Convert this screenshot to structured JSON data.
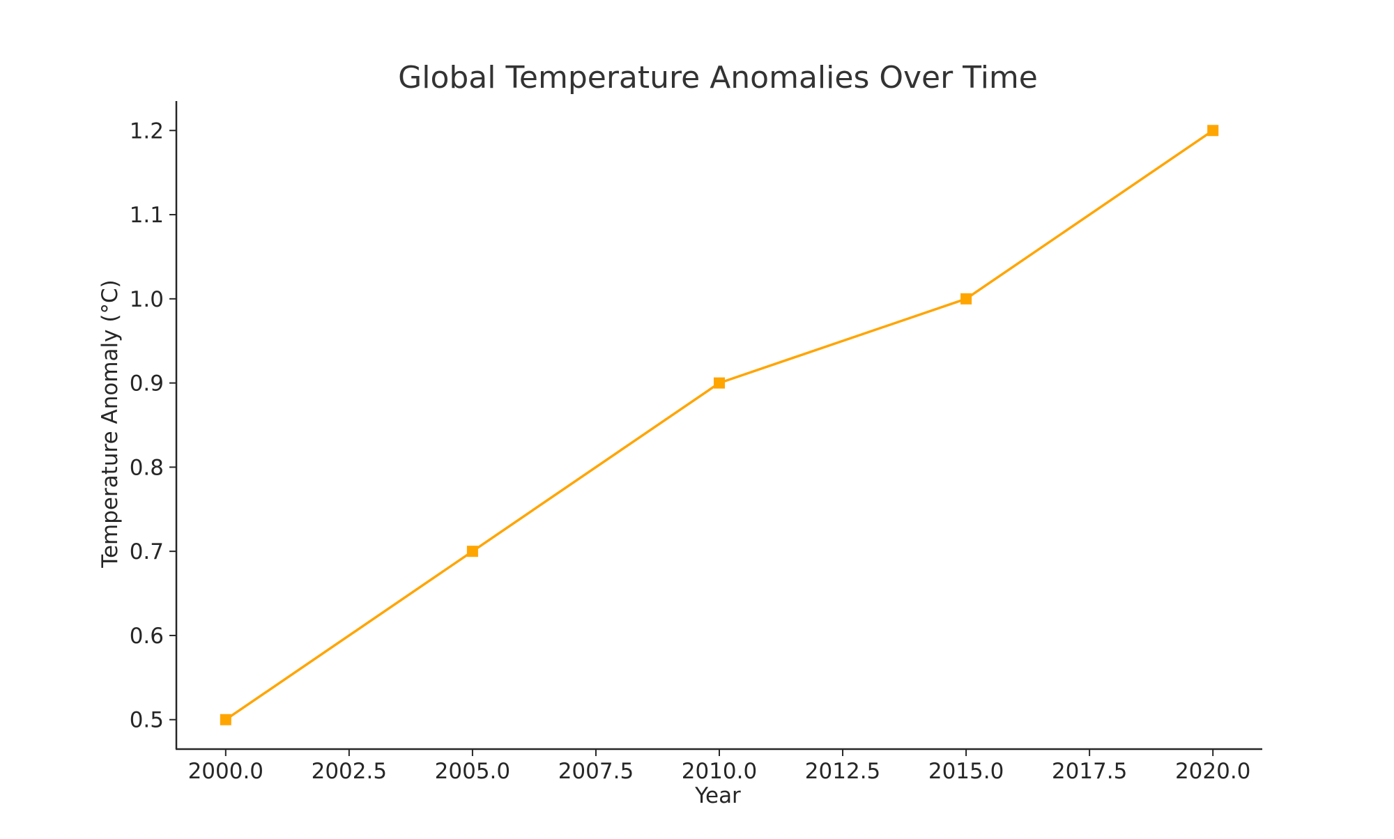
{
  "chart_data": {
    "type": "line",
    "title": "Global Temperature Anomalies Over Time",
    "xlabel": "Year",
    "ylabel": "Temperature Anomaly (°C)",
    "x": [
      2000,
      2005,
      2010,
      2015,
      2020
    ],
    "series": [
      {
        "values": [
          0.5,
          0.7,
          0.9,
          1.0,
          1.2
        ],
        "color": "#FFA500",
        "marker": "square"
      }
    ],
    "xlim": [
      1999.0,
      2021.0
    ],
    "ylim": [
      0.465,
      1.235
    ],
    "x_ticks": [
      2000,
      2002.5,
      2005,
      2007.5,
      2010,
      2012.5,
      2015,
      2017.5,
      2020
    ],
    "x_tick_labels": [
      "2000.0",
      "2002.5",
      "2005.0",
      "2007.5",
      "2010.0",
      "2012.5",
      "2015.0",
      "2017.5",
      "2020.0"
    ],
    "y_ticks": [
      0.5,
      0.6,
      0.7,
      0.8,
      0.9,
      1.0,
      1.1,
      1.2
    ],
    "y_tick_labels": [
      "0.5",
      "0.6",
      "0.7",
      "0.8",
      "0.9",
      "1.0",
      "1.1",
      "1.2"
    ],
    "grid": false,
    "legend": "none"
  }
}
